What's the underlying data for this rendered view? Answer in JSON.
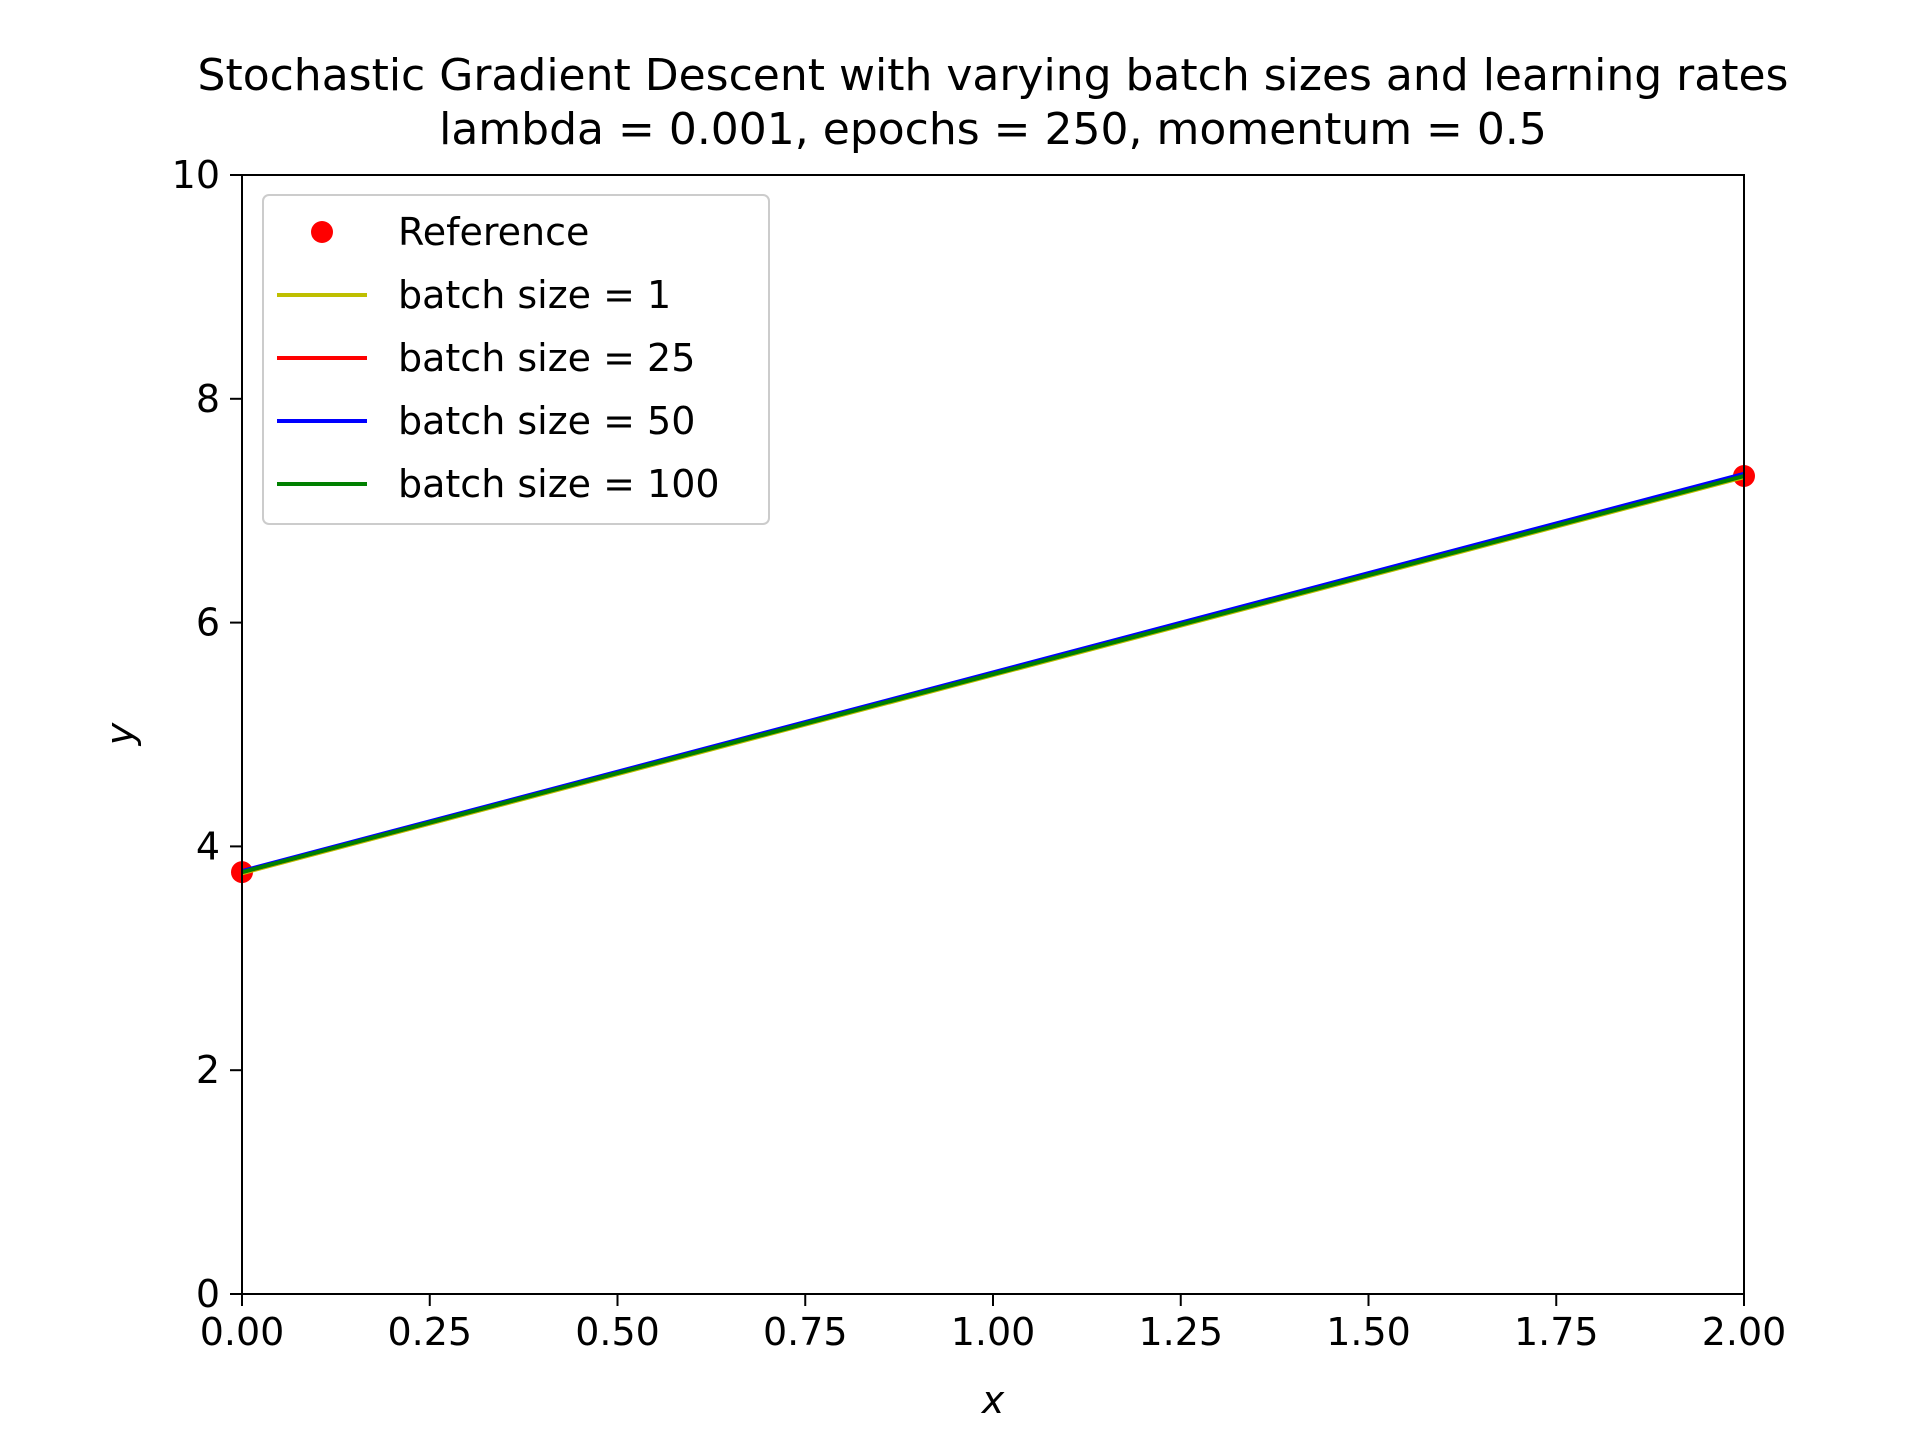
{
  "chart_data": {
    "type": "line",
    "title": "Stochastic Gradient Descent with varying batch sizes and learning rates",
    "subtitle": "lambda = 0.001, epochs = 250, momentum = 0.5",
    "xlabel": "x",
    "ylabel": "y",
    "xlim": [
      0,
      2
    ],
    "ylim": [
      0,
      10
    ],
    "xticks": [
      "0.00",
      "0.25",
      "0.50",
      "0.75",
      "1.00",
      "1.25",
      "1.50",
      "1.75",
      "2.00"
    ],
    "yticks": [
      "0",
      "2",
      "4",
      "6",
      "8",
      "10"
    ],
    "legend_position": "top-left",
    "grid": false,
    "reference": {
      "name": "Reference",
      "color": "#ff0000",
      "x": [
        0,
        2
      ],
      "y": [
        3.77,
        7.31
      ]
    },
    "series": [
      {
        "name": "batch size = 1",
        "color": "#bfbf00",
        "x": [
          0,
          2
        ],
        "y": [
          3.76,
          7.3
        ]
      },
      {
        "name": "batch size = 25",
        "color": "#ff0000",
        "x": [
          0,
          2
        ],
        "y": [
          3.77,
          7.32
        ]
      },
      {
        "name": "batch size = 50",
        "color": "#0000ff",
        "x": [
          0,
          2
        ],
        "y": [
          3.78,
          7.33
        ]
      },
      {
        "name": "batch size = 100",
        "color": "#008000",
        "x": [
          0,
          2
        ],
        "y": [
          3.77,
          7.31
        ]
      }
    ]
  }
}
